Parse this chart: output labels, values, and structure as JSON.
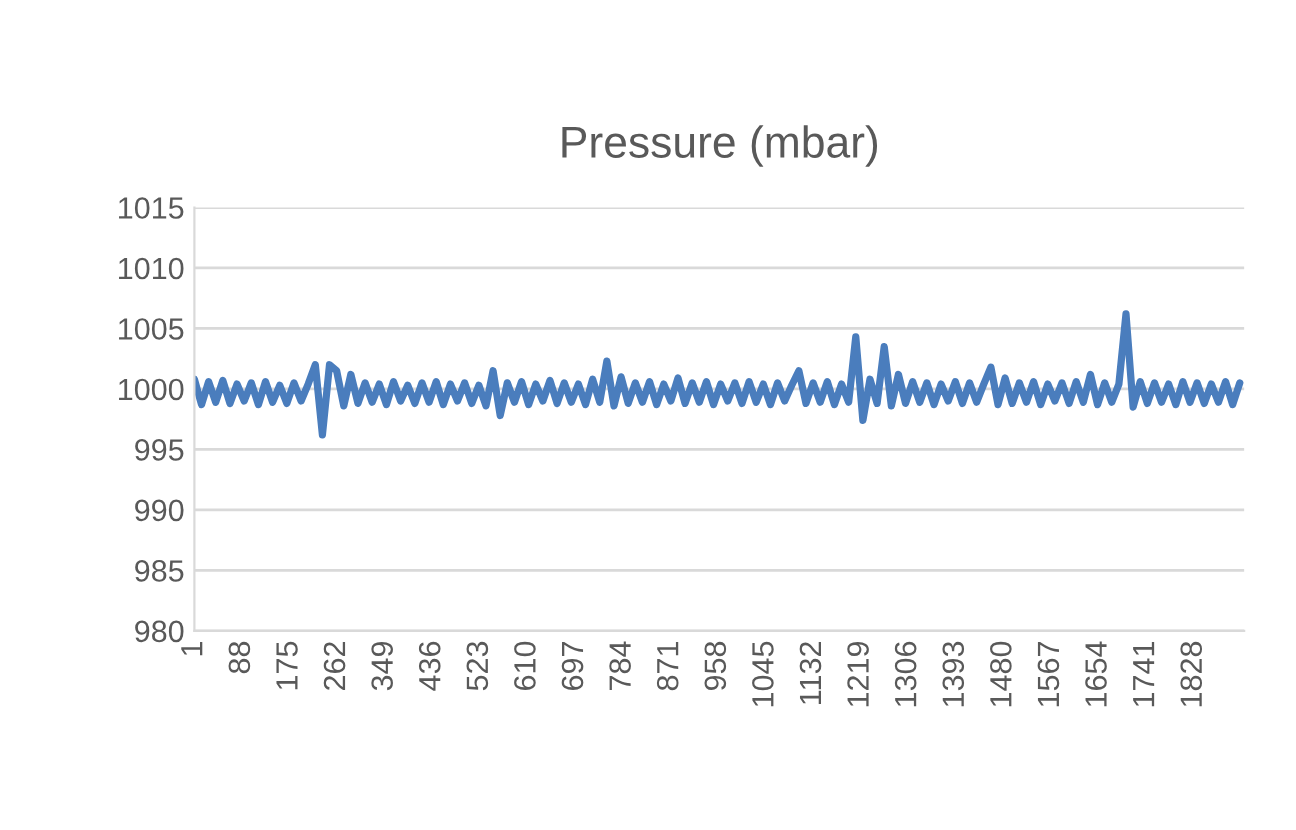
{
  "chart_data": {
    "type": "line",
    "title": "Pressure (mbar)",
    "x": [
      1,
      14,
      27,
      40,
      53,
      66,
      79,
      92,
      105,
      118,
      131,
      144,
      157,
      170,
      183,
      196,
      209,
      222,
      235,
      248,
      261,
      274,
      287,
      300,
      313,
      326,
      339,
      352,
      365,
      378,
      391,
      404,
      417,
      430,
      443,
      456,
      469,
      482,
      495,
      508,
      521,
      534,
      547,
      560,
      573,
      586,
      599,
      612,
      625,
      638,
      651,
      664,
      677,
      690,
      703,
      716,
      729,
      742,
      755,
      768,
      781,
      794,
      807,
      820,
      833,
      846,
      859,
      872,
      885,
      898,
      911,
      924,
      937,
      950,
      963,
      976,
      989,
      1002,
      1015,
      1028,
      1041,
      1054,
      1067,
      1080,
      1093,
      1106,
      1119,
      1132,
      1145,
      1158,
      1171,
      1184,
      1197,
      1210,
      1223,
      1236,
      1249,
      1262,
      1275,
      1288,
      1301,
      1314,
      1327,
      1340,
      1353,
      1366,
      1379,
      1392,
      1405,
      1418,
      1431,
      1444,
      1457,
      1470,
      1483,
      1496,
      1509,
      1522,
      1535,
      1548,
      1561,
      1574,
      1587,
      1600,
      1613,
      1626,
      1639,
      1652,
      1665,
      1678,
      1691,
      1704,
      1717,
      1730,
      1743,
      1756,
      1769,
      1782,
      1795,
      1808,
      1821,
      1834,
      1847,
      1860,
      1873,
      1886,
      1899,
      1912
    ],
    "series": [
      {
        "color": "#4a7dbd",
        "values": [
          1000.8,
          998.7,
          1000.6,
          998.9,
          1000.7,
          998.8,
          1000.4,
          999.0,
          1000.5,
          998.7,
          1000.6,
          998.9,
          1000.3,
          998.8,
          1000.5,
          999.0,
          1000.4,
          1002.0,
          996.2,
          1002.0,
          1001.5,
          998.6,
          1001.2,
          998.8,
          1000.5,
          998.9,
          1000.4,
          998.7,
          1000.6,
          999.0,
          1000.3,
          998.8,
          1000.5,
          998.9,
          1000.6,
          998.7,
          1000.4,
          999.0,
          1000.5,
          998.8,
          1000.3,
          998.6,
          1001.5,
          997.8,
          1000.5,
          998.9,
          1000.6,
          998.7,
          1000.4,
          999.0,
          1000.7,
          998.8,
          1000.5,
          998.9,
          1000.4,
          998.7,
          1000.8,
          998.9,
          1002.3,
          998.6,
          1001.0,
          998.8,
          1000.5,
          998.9,
          1000.6,
          998.7,
          1000.4,
          999.0,
          1000.9,
          998.8,
          1000.5,
          998.9,
          1000.6,
          998.7,
          1000.4,
          999.0,
          1000.5,
          998.8,
          1000.6,
          998.9,
          1000.4,
          998.7,
          1000.5,
          999.0,
          1000.3,
          1001.5,
          998.8,
          1000.5,
          998.9,
          1000.6,
          998.7,
          1000.4,
          998.9,
          1004.3,
          997.4,
          1000.8,
          998.8,
          1003.5,
          998.6,
          1001.2,
          998.8,
          1000.6,
          998.9,
          1000.5,
          998.7,
          1000.4,
          999.0,
          1000.6,
          998.8,
          1000.5,
          998.9,
          1000.4,
          1001.8,
          998.7,
          1000.9,
          998.8,
          1000.5,
          998.9,
          1000.6,
          998.7,
          1000.4,
          999.0,
          1000.5,
          998.8,
          1000.6,
          998.9,
          1001.2,
          998.7,
          1000.5,
          998.9,
          1000.4,
          1006.2,
          998.5,
          1000.6,
          998.8,
          1000.5,
          998.9,
          1000.4,
          998.7,
          1000.6,
          998.9,
          1000.5,
          998.8,
          1000.4,
          998.9,
          1000.6,
          998.7,
          1000.5
        ]
      }
    ],
    "xlim": [
      1,
      1920
    ],
    "xticks": [
      1,
      88,
      175,
      262,
      349,
      436,
      523,
      610,
      697,
      784,
      871,
      958,
      1045,
      1132,
      1219,
      1306,
      1393,
      1480,
      1567,
      1654,
      1741,
      1828
    ],
    "ylim": [
      980,
      1015
    ],
    "yticks": [
      980,
      985,
      990,
      995,
      1000,
      1005,
      1010,
      1015
    ],
    "grid": "y",
    "legend": false,
    "marker": "none",
    "line_style": "solid"
  }
}
